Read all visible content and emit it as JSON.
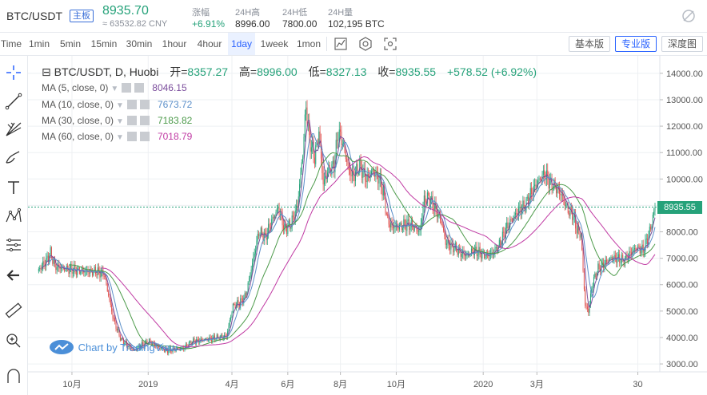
{
  "ticker": {
    "pair": "BTC/USDT",
    "tag": "主板",
    "price": "8935.70",
    "cny": "≈ 63532.82 CNY",
    "stats": [
      {
        "label": "涨幅",
        "value": "+6.91%",
        "positive": true
      },
      {
        "label": "24H高",
        "value": "8996.00",
        "positive": false
      },
      {
        "label": "24H低",
        "value": "7800.00",
        "positive": false
      },
      {
        "label": "24H量",
        "value": "102,195 BTC",
        "positive": false
      }
    ]
  },
  "toolbar": {
    "timeframes": [
      "Time",
      "1min",
      "5min",
      "15min",
      "30min",
      "1hour",
      "4hour",
      "1day",
      "1week",
      "1mon"
    ],
    "active_timeframe": "1day",
    "views": [
      "基本版",
      "专业版",
      "深度图"
    ],
    "active_view": "专业版"
  },
  "legend": {
    "symbol": "BTC/USDT, D, Huobi",
    "open_label": "开=",
    "open": "8357.27",
    "high_label": "高=",
    "high": "8996.00",
    "low_label": "低=",
    "low": "8327.13",
    "close_label": "收=",
    "close": "8935.55",
    "change": "+578.52 (+6.92%)",
    "ma": [
      {
        "label": "MA (5, close, 0)",
        "value": "8046.15",
        "color": "#7b4d9c"
      },
      {
        "label": "MA (10, close, 0)",
        "value": "7673.72",
        "color": "#5b8fc9"
      },
      {
        "label": "MA (30, close, 0)",
        "value": "7183.82",
        "color": "#4c9a4a"
      },
      {
        "label": "MA (60, close, 0)",
        "value": "7018.79",
        "color": "#c03aa3"
      }
    ]
  },
  "branding": {
    "text": "Chart by TradingView"
  },
  "colors": {
    "up": "#26a27a",
    "down": "#e0524f",
    "grid": "#eef0f3",
    "axis_text": "#555555"
  },
  "chart_data": {
    "type": "candlestick",
    "y_ticks": [
      3000,
      4000,
      5000,
      6000,
      7000,
      8000,
      9000,
      10000,
      11000,
      12000,
      13000,
      14000
    ],
    "y_tick_labels": [
      "3000.00",
      "4000.00",
      "5000.00",
      "6000.00",
      "7000.00",
      "8000.00",
      "9000.00",
      "10000.00",
      "11000.00",
      "12000.00",
      "13000.00",
      "14000.00"
    ],
    "ylim": [
      2700,
      14600
    ],
    "x_ticks": [
      "10月",
      "2019",
      "4月",
      "6月",
      "8月",
      "10月",
      "2020",
      "3月",
      "30"
    ],
    "last_price_label": "8935.55",
    "last_price": 8935.55,
    "close_path": [
      [
        0,
        6500
      ],
      [
        8,
        6900
      ],
      [
        12,
        7200
      ],
      [
        16,
        6700
      ],
      [
        25,
        6600
      ],
      [
        35,
        6550
      ],
      [
        45,
        6500
      ],
      [
        55,
        6500
      ],
      [
        62,
        6400
      ],
      [
        66,
        5600
      ],
      [
        70,
        4800
      ],
      [
        74,
        4300
      ],
      [
        78,
        3900
      ],
      [
        84,
        3700
      ],
      [
        90,
        3500
      ],
      [
        96,
        3700
      ],
      [
        104,
        3850
      ],
      [
        112,
        3650
      ],
      [
        120,
        3500
      ],
      [
        128,
        3550
      ],
      [
        136,
        3600
      ],
      [
        144,
        3850
      ],
      [
        152,
        3900
      ],
      [
        160,
        3950
      ],
      [
        168,
        4000
      ],
      [
        176,
        4050
      ],
      [
        182,
        5200
      ],
      [
        188,
        5300
      ],
      [
        194,
        5600
      ],
      [
        200,
        6800
      ],
      [
        206,
        8000
      ],
      [
        212,
        7800
      ],
      [
        218,
        8400
      ],
      [
        224,
        8900
      ],
      [
        230,
        8100
      ],
      [
        236,
        8300
      ],
      [
        242,
        9000
      ],
      [
        247,
        11000
      ],
      [
        250,
        12800
      ],
      [
        253,
        11500
      ],
      [
        258,
        10800
      ],
      [
        262,
        11800
      ],
      [
        266,
        9800
      ],
      [
        270,
        10300
      ],
      [
        276,
        10500
      ],
      [
        280,
        11800
      ],
      [
        284,
        11400
      ],
      [
        290,
        10300
      ],
      [
        294,
        10100
      ],
      [
        300,
        10500
      ],
      [
        306,
        10000
      ],
      [
        312,
        10300
      ],
      [
        318,
        10000
      ],
      [
        322,
        9500
      ],
      [
        326,
        8400
      ],
      [
        330,
        8200
      ],
      [
        338,
        8200
      ],
      [
        344,
        8300
      ],
      [
        350,
        8200
      ],
      [
        356,
        8000
      ],
      [
        360,
        9200
      ],
      [
        364,
        9300
      ],
      [
        370,
        8900
      ],
      [
        376,
        8400
      ],
      [
        380,
        7600
      ],
      [
        388,
        7400
      ],
      [
        394,
        7200
      ],
      [
        400,
        7100
      ],
      [
        406,
        7300
      ],
      [
        412,
        7200
      ],
      [
        418,
        7100
      ],
      [
        424,
        7200
      ],
      [
        430,
        7500
      ],
      [
        436,
        8100
      ],
      [
        442,
        8500
      ],
      [
        448,
        8800
      ],
      [
        454,
        9000
      ],
      [
        460,
        9500
      ],
      [
        466,
        9900
      ],
      [
        472,
        10200
      ],
      [
        478,
        9800
      ],
      [
        482,
        9700
      ],
      [
        488,
        9400
      ],
      [
        494,
        8800
      ],
      [
        498,
        8700
      ],
      [
        502,
        8100
      ],
      [
        506,
        7900
      ],
      [
        510,
        5200
      ],
      [
        513,
        5000
      ],
      [
        517,
        6100
      ],
      [
        522,
        6600
      ],
      [
        528,
        6800
      ],
      [
        534,
        7000
      ],
      [
        540,
        7000
      ],
      [
        546,
        6900
      ],
      [
        552,
        7200
      ],
      [
        558,
        7400
      ],
      [
        564,
        7300
      ],
      [
        570,
        8000
      ],
      [
        575,
        8900
      ]
    ],
    "ma_series": [
      {
        "label": "MA5",
        "color": "#7b4d9c"
      },
      {
        "label": "MA10",
        "color": "#5b8fc9"
      },
      {
        "label": "MA30",
        "color": "#4c9a4a"
      },
      {
        "label": "MA60",
        "color": "#c03aa3"
      }
    ]
  }
}
